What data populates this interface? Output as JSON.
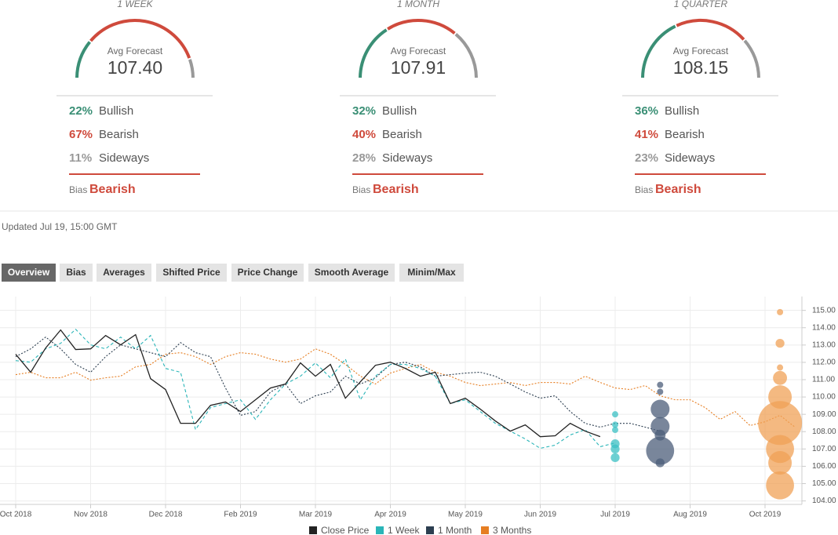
{
  "forecasts": [
    {
      "period": "1 WEEK",
      "avg": "107.40",
      "bullish": {
        "value": 22,
        "label": "22%"
      },
      "bearish": {
        "value": 67,
        "label": "67%"
      },
      "sideways": {
        "value": 11,
        "label": "11%"
      },
      "bias": "Bearish"
    },
    {
      "period": "1 MONTH",
      "avg": "107.91",
      "bullish": {
        "value": 32,
        "label": "32%"
      },
      "bearish": {
        "value": 40,
        "label": "40%"
      },
      "sideways": {
        "value": 28,
        "label": "28%"
      },
      "bias": "Bearish"
    },
    {
      "period": "1 QUARTER",
      "avg": "108.15",
      "bullish": {
        "value": 36,
        "label": "36%"
      },
      "bearish": {
        "value": 41,
        "label": "41%"
      },
      "sideways": {
        "value": 23,
        "label": "23%"
      },
      "bias": "Bearish"
    }
  ],
  "labels": {
    "avg": "Avg Forecast",
    "bullish": "Bullish",
    "bearish": "Bearish",
    "sideways": "Sideways",
    "bias": "Bias"
  },
  "updated": "Updated Jul 19, 15:00 GMT",
  "tabs": [
    "Overview",
    "Bias",
    "Averages",
    "Shifted Price",
    "Price Change",
    "Smooth Average",
    "Minim/Max"
  ],
  "active_tab": 0,
  "chart_data": {
    "type": "line",
    "categories": [
      "Oct 2018",
      null,
      null,
      null,
      null,
      "Nov 2018",
      null,
      null,
      null,
      null,
      "Dec 2018",
      null,
      null,
      null,
      null,
      "Feb 2019",
      null,
      null,
      null,
      null,
      "Mar 2019",
      null,
      null,
      null,
      null,
      "Apr 2019",
      null,
      null,
      null,
      null,
      "May 2019",
      null,
      null,
      null,
      null,
      "Jun 2019",
      null,
      null,
      null,
      null,
      "Jul 2019",
      null,
      null,
      null,
      null,
      "Aug 2019",
      null,
      null,
      null,
      null,
      "Oct 2019",
      null,
      null
    ],
    "ylim": [
      103.8,
      115.8
    ],
    "yticks": [
      {
        "value": 104,
        "label": "104.00"
      },
      {
        "value": 105,
        "label": "105.00"
      },
      {
        "value": 106,
        "label": "106.00"
      },
      {
        "value": 107,
        "label": "107.00"
      },
      {
        "value": 108,
        "label": "108.00"
      },
      {
        "value": 109,
        "label": "109.00"
      },
      {
        "value": 110,
        "label": "110.00"
      },
      {
        "value": 111,
        "label": "111.00"
      },
      {
        "value": 112,
        "label": "112.00"
      },
      {
        "value": 113,
        "label": "113.00"
      },
      {
        "value": 114,
        "label": "114.00"
      },
      {
        "value": 115,
        "label": "115.00"
      }
    ],
    "grid": true,
    "series": [
      {
        "name": "Close Price",
        "color": "#222222",
        "dash": "none",
        "values": [
          112.47,
          111.43,
          112.83,
          113.87,
          112.74,
          112.78,
          113.55,
          113.01,
          113.6,
          111.06,
          110.43,
          108.48,
          108.48,
          109.52,
          109.71,
          109.16,
          109.84,
          110.52,
          110.75,
          111.97,
          111.2,
          111.88,
          109.93,
          110.88,
          111.83,
          112.01,
          111.65,
          111.2,
          111.43,
          109.62,
          109.93,
          109.3,
          108.62,
          108.03,
          108.39,
          107.71,
          107.76,
          108.48,
          108.03,
          107.71,
          null,
          null,
          null,
          null,
          null,
          null,
          null,
          null,
          null,
          null,
          null,
          null,
          null
        ]
      },
      {
        "name": "1 Week",
        "color": "#2ab5b8",
        "dash": "4 3",
        "values": [
          112.1,
          112.01,
          112.78,
          113.1,
          113.91,
          113.01,
          112.78,
          113.46,
          112.78,
          113.55,
          111.65,
          111.43,
          108.12,
          109.39,
          109.62,
          109.84,
          108.71,
          109.84,
          110.75,
          111.2,
          111.97,
          111.11,
          112.19,
          109.84,
          111.2,
          111.88,
          111.88,
          111.65,
          111.2,
          109.62,
          109.84,
          109.16,
          108.48,
          108.03,
          107.58,
          107.04,
          107.22,
          107.81,
          108.12,
          107.13,
          107.35,
          null,
          null,
          null,
          null,
          null,
          null,
          null,
          null,
          null,
          null,
          null,
          null
        ]
      },
      {
        "name": "1 Month",
        "color": "#2c3e50",
        "dash": "2 2",
        "values": [
          112.33,
          112.78,
          113.46,
          112.78,
          111.88,
          111.43,
          112.33,
          113.01,
          112.78,
          112.56,
          112.33,
          113.14,
          112.56,
          112.33,
          110.52,
          108.94,
          109.16,
          110.29,
          110.75,
          109.62,
          110.07,
          110.29,
          111.2,
          110.75,
          111.11,
          111.88,
          112.01,
          111.74,
          111.2,
          111.29,
          111.38,
          111.43,
          111.2,
          110.75,
          110.29,
          109.93,
          110.07,
          109.16,
          108.48,
          108.26,
          108.48,
          108.48,
          108.26,
          108.03,
          null,
          null,
          null,
          null,
          null,
          null,
          null,
          null,
          null
        ]
      },
      {
        "name": "3 Months",
        "color": "#e67e22",
        "dash": "2 2",
        "values": [
          111.29,
          111.43,
          111.11,
          111.11,
          111.43,
          110.97,
          111.11,
          111.2,
          111.74,
          111.88,
          112.47,
          112.56,
          112.33,
          111.88,
          112.33,
          112.56,
          112.47,
          112.19,
          112.01,
          112.19,
          112.78,
          112.47,
          111.88,
          111.2,
          110.75,
          111.38,
          111.65,
          111.88,
          111.43,
          111.2,
          110.84,
          110.66,
          110.75,
          110.84,
          110.66,
          110.84,
          110.84,
          110.75,
          111.2,
          110.84,
          110.52,
          110.43,
          110.66,
          110.07,
          109.84,
          109.84,
          109.39,
          108.71,
          109.16,
          108.35,
          108.57,
          108.94,
          108.26
        ]
      }
    ],
    "bubbles": [
      {
        "color": "#3cc0c4",
        "x": 40,
        "values": [
          109,
          108.4,
          108.1,
          107.3,
          107,
          106.5
        ],
        "sizes": [
          1,
          1,
          1,
          2,
          2,
          2
        ]
      },
      {
        "color": "#4c5d7a",
        "x": 43,
        "values": [
          110.7,
          110.3,
          109.3,
          108.3,
          107.8,
          106.9,
          106.2
        ],
        "sizes": [
          1,
          1,
          9,
          9,
          3,
          20,
          2
        ]
      },
      {
        "color": "#f0a257",
        "x": 51,
        "values": [
          114.9,
          113.1,
          111.7,
          111.1,
          110,
          108.5,
          107,
          106.2,
          104.9
        ],
        "sizes": [
          1,
          2,
          1,
          5,
          14,
          49,
          20,
          14,
          20
        ]
      }
    ]
  }
}
